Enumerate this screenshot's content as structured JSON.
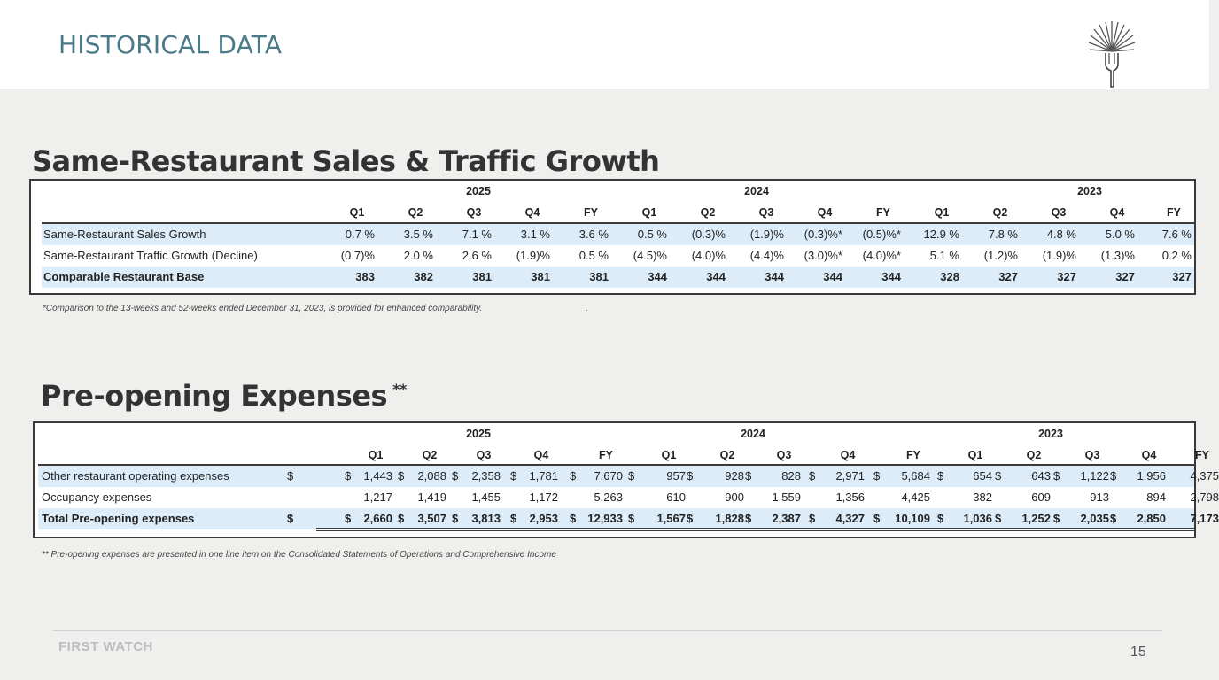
{
  "header": {
    "title": "HISTORICAL DATA"
  },
  "sales": {
    "title": "Same-Restaurant Sales & Traffic Growth",
    "years": [
      "2025",
      "2024",
      "2023"
    ],
    "quarters": [
      "Q1",
      "Q2",
      "Q3",
      "Q4",
      "FY",
      "Q1",
      "Q2",
      "Q3",
      "Q4",
      "FY",
      "Q1",
      "Q2",
      "Q3",
      "Q4",
      "FY"
    ],
    "rows": [
      {
        "label": "Same-Restaurant Sales Growth",
        "values": [
          "0.7 %",
          "3.5 %",
          "7.1 %",
          "3.1 %",
          "3.6 %",
          "0.5 %",
          "(0.3)%",
          "(1.9)%",
          "(0.3)%*",
          "(0.5)%*",
          "12.9 %",
          "7.8 %",
          "4.8 %",
          "5.0 %",
          "7.6 %"
        ]
      },
      {
        "label": "Same-Restaurant Traffic Growth (Decline)",
        "values": [
          "(0.7)%",
          "2.0 %",
          "2.6 %",
          "(1.9)%",
          "0.5 %",
          "(4.5)%",
          "(4.0)%",
          "(4.4)%",
          "(3.0)%*",
          "(4.0)%*",
          "5.1 %",
          "(1.2)%",
          "(1.9)%",
          "(1.3)%",
          "0.2 %"
        ]
      },
      {
        "label": "Comparable Restaurant Base",
        "values": [
          "383",
          "382",
          "381",
          "381",
          "381",
          "344",
          "344",
          "344",
          "344",
          "344",
          "328",
          "327",
          "327",
          "327",
          "327"
        ]
      }
    ],
    "footnote": "*Comparison to the 13-weeks and 52-weeks ended December 31, 2023, is provided for enhanced comparability.",
    "footnote_mark": "."
  },
  "preopening": {
    "title": "Pre-opening Expenses",
    "title_mark": "**",
    "years": [
      "2025",
      "2024",
      "2023"
    ],
    "quarters": [
      "Q1",
      "Q2",
      "Q3",
      "Q4",
      "FY",
      "Q1",
      "Q2",
      "Q3",
      "Q4",
      "FY",
      "Q1",
      "Q2",
      "Q3",
      "Q4",
      "FY"
    ],
    "rows": [
      {
        "label": "Other restaurant operating expenses",
        "dollar": true,
        "values": [
          "1,443",
          "2,088",
          "2,358",
          "1,781",
          "7,670",
          "957",
          "928",
          "828",
          "2,971",
          "5,684",
          "654",
          "643",
          "1,122",
          "1,956",
          "4,375"
        ]
      },
      {
        "label": "Occupancy expenses",
        "dollar": false,
        "values": [
          "1,217",
          "1,419",
          "1,455",
          "1,172",
          "5,263",
          "610",
          "900",
          "1,559",
          "1,356",
          "4,425",
          "382",
          "609",
          "913",
          "894",
          "2,798"
        ]
      },
      {
        "label": "Total Pre-opening expenses",
        "dollar": true,
        "values": [
          "2,660",
          "3,507",
          "3,813",
          "2,953",
          "12,933",
          "1,567",
          "1,828",
          "2,387",
          "4,327",
          "10,109",
          "1,036",
          "1,252",
          "2,035",
          "2,850",
          "7,173"
        ]
      }
    ],
    "currency": "$",
    "footnote": "** Pre-opening expenses are presented in one line item on the Consolidated Statements of Operations and Comprehensive Income"
  },
  "footer": {
    "brand": "FIRST WATCH",
    "page_number": "15"
  }
}
